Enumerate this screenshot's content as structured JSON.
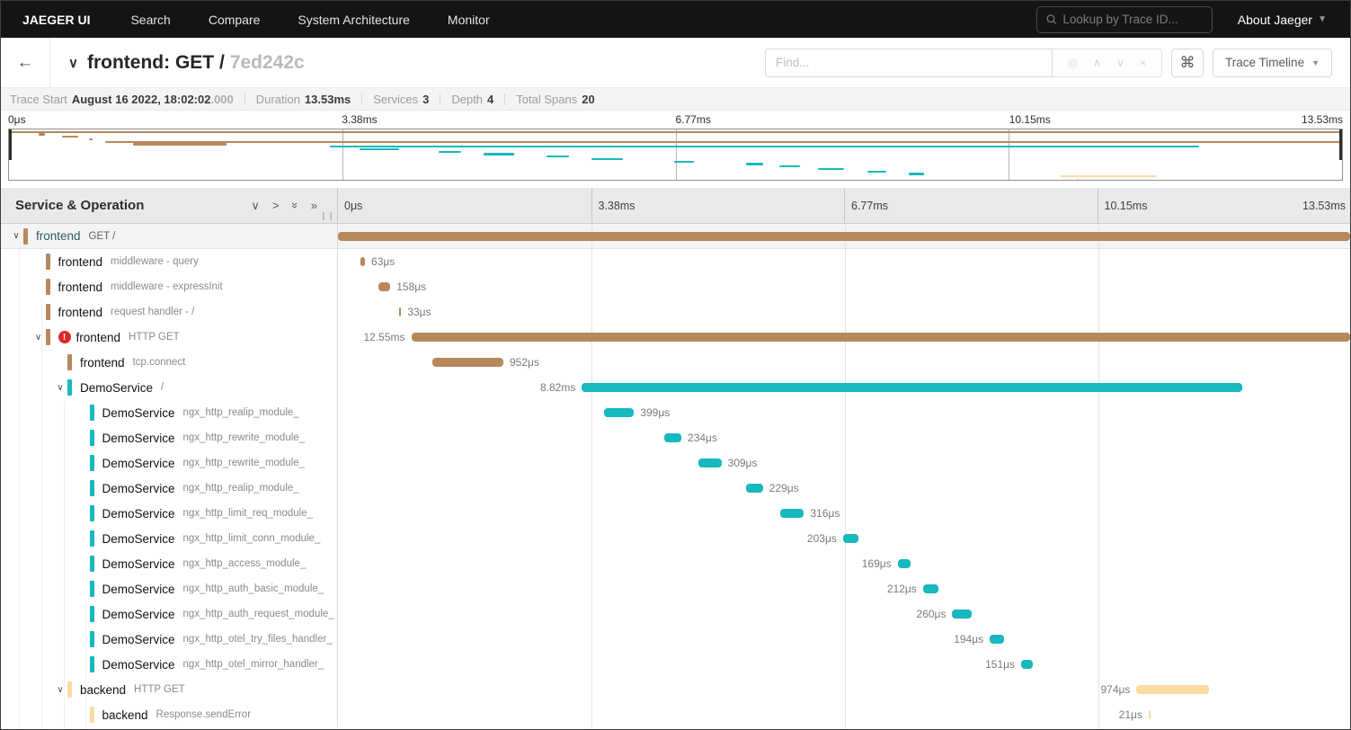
{
  "nav": {
    "brand": "JAEGER UI",
    "items": [
      "Search",
      "Compare",
      "System Architecture",
      "Monitor"
    ],
    "lookup_placeholder": "Lookup by Trace ID...",
    "about_label": "About Jaeger"
  },
  "header": {
    "back_icon": "←",
    "title": "frontend: GET /",
    "trace_id_short": "7ed242c",
    "find_placeholder": "Find...",
    "suffix_icons": [
      "◎",
      "∧",
      "∨",
      "×"
    ],
    "cmd_icon": "⌘",
    "view_selector_label": "Trace Timeline"
  },
  "meta": [
    {
      "label": "Trace Start",
      "value": "August 16 2022, 18:02:02",
      "suffix": ".000"
    },
    {
      "label": "Duration",
      "value": "13.53ms"
    },
    {
      "label": "Services",
      "value": "3"
    },
    {
      "label": "Depth",
      "value": "4"
    },
    {
      "label": "Total Spans",
      "value": "20"
    }
  ],
  "timeline": {
    "left_header": "Service & Operation",
    "ticks": [
      "0μs",
      "3.38ms",
      "6.77ms",
      "10.15ms",
      "13.53ms"
    ],
    "total_duration": "13.53ms"
  },
  "colors": {
    "frontend": "#B7885E",
    "DemoService": "#17B8BE",
    "backend": "#F8DCA1",
    "error": "#db2828"
  },
  "spans": [
    {
      "service": "frontend",
      "operation": "GET /",
      "color": "#B7885E",
      "depth": 0,
      "expandable": true,
      "error": false,
      "selected": true,
      "start_pct": 0,
      "width_pct": 100,
      "duration": "13.53ms",
      "label_side": "right"
    },
    {
      "service": "frontend",
      "operation": "middleware - query",
      "color": "#B7885E",
      "depth": 1,
      "expandable": false,
      "error": false,
      "selected": false,
      "start_pct": 2.2,
      "width_pct": 0.47,
      "duration": "63μs",
      "label_side": "right"
    },
    {
      "service": "frontend",
      "operation": "middleware - expressInit",
      "color": "#B7885E",
      "depth": 1,
      "expandable": false,
      "error": false,
      "selected": false,
      "start_pct": 4.0,
      "width_pct": 1.17,
      "duration": "158μs",
      "label_side": "right"
    },
    {
      "service": "frontend",
      "operation": "request handler - /",
      "color": "#B7885E",
      "depth": 1,
      "expandable": false,
      "error": false,
      "selected": false,
      "start_pct": 6.0,
      "width_pct": 0.24,
      "duration": "33μs",
      "label_side": "right"
    },
    {
      "service": "frontend",
      "operation": "HTTP GET",
      "color": "#B7885E",
      "depth": 1,
      "expandable": true,
      "error": true,
      "selected": false,
      "start_pct": 7.24,
      "width_pct": 92.76,
      "duration": "12.55ms",
      "label_side": "left"
    },
    {
      "service": "frontend",
      "operation": "tcp.connect",
      "color": "#B7885E",
      "depth": 2,
      "expandable": false,
      "error": false,
      "selected": false,
      "start_pct": 9.3,
      "width_pct": 7.04,
      "duration": "952μs",
      "label_side": "right"
    },
    {
      "service": "DemoService",
      "operation": "/",
      "color": "#17B8BE",
      "depth": 2,
      "expandable": true,
      "error": false,
      "selected": false,
      "start_pct": 24.1,
      "width_pct": 65.2,
      "duration": "8.82ms",
      "label_side": "left"
    },
    {
      "service": "DemoService",
      "operation": "ngx_http_realip_module_",
      "color": "#17B8BE",
      "depth": 3,
      "expandable": false,
      "error": false,
      "selected": false,
      "start_pct": 26.3,
      "width_pct": 2.95,
      "duration": "399μs",
      "label_side": "right"
    },
    {
      "service": "DemoService",
      "operation": "ngx_http_rewrite_module_",
      "color": "#17B8BE",
      "depth": 3,
      "expandable": false,
      "error": false,
      "selected": false,
      "start_pct": 32.2,
      "width_pct": 1.73,
      "duration": "234μs",
      "label_side": "right"
    },
    {
      "service": "DemoService",
      "operation": "ngx_http_rewrite_module_",
      "color": "#17B8BE",
      "depth": 3,
      "expandable": false,
      "error": false,
      "selected": false,
      "start_pct": 35.6,
      "width_pct": 2.28,
      "duration": "309μs",
      "label_side": "right"
    },
    {
      "service": "DemoService",
      "operation": "ngx_http_realip_module_",
      "color": "#17B8BE",
      "depth": 3,
      "expandable": false,
      "error": false,
      "selected": false,
      "start_pct": 40.3,
      "width_pct": 1.69,
      "duration": "229μs",
      "label_side": "right"
    },
    {
      "service": "DemoService",
      "operation": "ngx_http_limit_req_module_",
      "color": "#17B8BE",
      "depth": 3,
      "expandable": false,
      "error": false,
      "selected": false,
      "start_pct": 43.7,
      "width_pct": 2.34,
      "duration": "316μs",
      "label_side": "right"
    },
    {
      "service": "DemoService",
      "operation": "ngx_http_limit_conn_module_",
      "color": "#17B8BE",
      "depth": 3,
      "expandable": false,
      "error": false,
      "selected": false,
      "start_pct": 49.9,
      "width_pct": 1.5,
      "duration": "203μs",
      "label_side": "left"
    },
    {
      "service": "DemoService",
      "operation": "ngx_http_access_module_",
      "color": "#17B8BE",
      "depth": 3,
      "expandable": false,
      "error": false,
      "selected": false,
      "start_pct": 55.3,
      "width_pct": 1.25,
      "duration": "169μs",
      "label_side": "left"
    },
    {
      "service": "DemoService",
      "operation": "ngx_http_auth_basic_module_",
      "color": "#17B8BE",
      "depth": 3,
      "expandable": false,
      "error": false,
      "selected": false,
      "start_pct": 57.8,
      "width_pct": 1.57,
      "duration": "212μs",
      "label_side": "left"
    },
    {
      "service": "DemoService",
      "operation": "ngx_http_auth_request_module_",
      "color": "#17B8BE",
      "depth": 3,
      "expandable": false,
      "error": false,
      "selected": false,
      "start_pct": 60.7,
      "width_pct": 1.92,
      "duration": "260μs",
      "label_side": "left"
    },
    {
      "service": "DemoService",
      "operation": "ngx_http_otel_try_files_handler_",
      "color": "#17B8BE",
      "depth": 3,
      "expandable": false,
      "error": false,
      "selected": false,
      "start_pct": 64.4,
      "width_pct": 1.43,
      "duration": "194μs",
      "label_side": "left"
    },
    {
      "service": "DemoService",
      "operation": "ngx_http_otel_mirror_handler_",
      "color": "#17B8BE",
      "depth": 3,
      "expandable": false,
      "error": false,
      "selected": false,
      "start_pct": 67.5,
      "width_pct": 1.12,
      "duration": "151μs",
      "label_side": "left"
    },
    {
      "service": "backend",
      "operation": "HTTP GET",
      "color": "#F8DCA1",
      "depth": 2,
      "expandable": true,
      "error": false,
      "selected": false,
      "start_pct": 78.9,
      "width_pct": 7.2,
      "duration": "974μs",
      "label_side": "left"
    },
    {
      "service": "backend",
      "operation": "Response.sendError",
      "color": "#F8DCA1",
      "depth": 3,
      "expandable": false,
      "error": false,
      "selected": false,
      "start_pct": 80.1,
      "width_pct": 0.16,
      "duration": "21μs",
      "label_side": "left"
    }
  ]
}
